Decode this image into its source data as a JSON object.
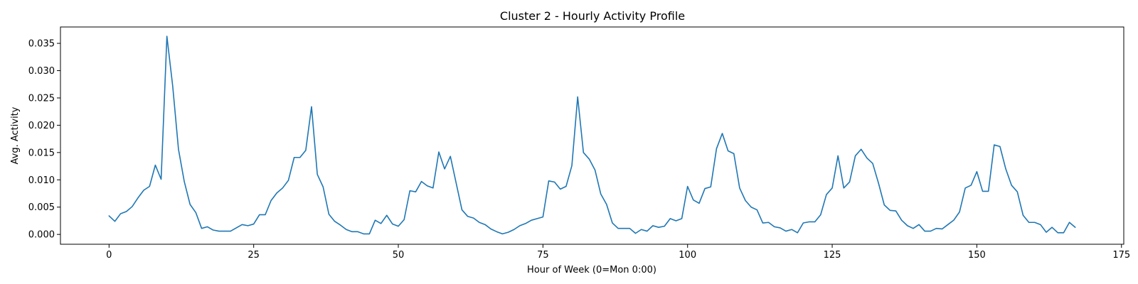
{
  "chart_data": {
    "type": "line",
    "title": "Cluster 2 - Hourly Activity Profile",
    "xlabel": "Hour of Week (0=Mon 0:00)",
    "ylabel": "Avg. Activity",
    "xlim": [
      -8.4,
      175.4
    ],
    "ylim": [
      -0.0018,
      0.038
    ],
    "xticks": [
      0,
      25,
      50,
      75,
      100,
      125,
      150,
      175
    ],
    "yticks": [
      0.0,
      0.005,
      0.01,
      0.015,
      0.02,
      0.025,
      0.03,
      0.035
    ],
    "ytick_labels": [
      "0.000",
      "0.005",
      "0.010",
      "0.015",
      "0.020",
      "0.025",
      "0.030",
      "0.035"
    ],
    "grid": false,
    "series": [
      {
        "color": "#1f77b4",
        "x_start": 0,
        "x_step": 1,
        "values": [
          0.0034,
          0.0024,
          0.0038,
          0.0042,
          0.0051,
          0.0067,
          0.0081,
          0.0088,
          0.0127,
          0.0101,
          0.0363,
          0.0272,
          0.0156,
          0.0097,
          0.0055,
          0.004,
          0.0011,
          0.0014,
          0.0008,
          0.0006,
          0.0006,
          0.0006,
          0.0012,
          0.0018,
          0.0016,
          0.0019,
          0.0036,
          0.0036,
          0.0062,
          0.0076,
          0.0085,
          0.0099,
          0.0141,
          0.0141,
          0.0154,
          0.0234,
          0.011,
          0.0087,
          0.0037,
          0.0024,
          0.0017,
          0.0009,
          0.0005,
          0.0005,
          0.0001,
          0.0001,
          0.0026,
          0.002,
          0.0035,
          0.0019,
          0.0015,
          0.0027,
          0.008,
          0.0078,
          0.0097,
          0.0089,
          0.0085,
          0.0151,
          0.012,
          0.0143,
          0.0094,
          0.0045,
          0.0033,
          0.003,
          0.0022,
          0.0018,
          0.001,
          0.0005,
          0.0001,
          0.0004,
          0.0009,
          0.0016,
          0.002,
          0.0026,
          0.0029,
          0.0032,
          0.0098,
          0.0096,
          0.0083,
          0.0088,
          0.0126,
          0.0252,
          0.015,
          0.0138,
          0.0118,
          0.0074,
          0.0055,
          0.0021,
          0.0011,
          0.0011,
          0.0011,
          0.0002,
          0.0009,
          0.0006,
          0.0016,
          0.0013,
          0.0015,
          0.0029,
          0.0025,
          0.0029,
          0.0088,
          0.0063,
          0.0057,
          0.0084,
          0.0087,
          0.0157,
          0.0185,
          0.0153,
          0.0148,
          0.0085,
          0.0062,
          0.005,
          0.0045,
          0.0021,
          0.0022,
          0.0014,
          0.0012,
          0.0006,
          0.0009,
          0.0003,
          0.0021,
          0.0023,
          0.0023,
          0.0036,
          0.0073,
          0.0085,
          0.0144,
          0.0085,
          0.0096,
          0.0144,
          0.0156,
          0.014,
          0.013,
          0.0094,
          0.0054,
          0.0044,
          0.0043,
          0.0026,
          0.0016,
          0.0011,
          0.0018,
          0.0006,
          0.0006,
          0.0011,
          0.001,
          0.0018,
          0.0026,
          0.0041,
          0.0085,
          0.009,
          0.0115,
          0.0079,
          0.0079,
          0.0164,
          0.0161,
          0.012,
          0.009,
          0.0078,
          0.0035,
          0.0022,
          0.0022,
          0.0018,
          0.0004,
          0.0013,
          0.0003,
          0.0003,
          0.0022,
          0.0013
        ]
      }
    ]
  }
}
